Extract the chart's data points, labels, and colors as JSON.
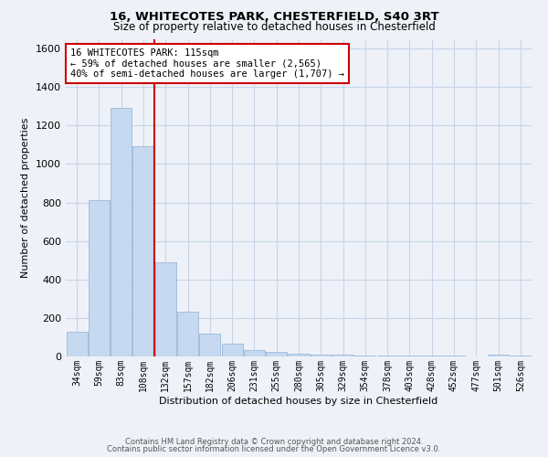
{
  "title1": "16, WHITECOTES PARK, CHESTERFIELD, S40 3RT",
  "title2": "Size of property relative to detached houses in Chesterfield",
  "xlabel": "Distribution of detached houses by size in Chesterfield",
  "ylabel": "Number of detached properties",
  "categories": [
    "34sqm",
    "59sqm",
    "83sqm",
    "108sqm",
    "132sqm",
    "157sqm",
    "182sqm",
    "206sqm",
    "231sqm",
    "255sqm",
    "280sqm",
    "305sqm",
    "329sqm",
    "354sqm",
    "378sqm",
    "403sqm",
    "428sqm",
    "452sqm",
    "477sqm",
    "501sqm",
    "526sqm"
  ],
  "values": [
    130,
    810,
    1290,
    1090,
    490,
    235,
    120,
    65,
    35,
    22,
    14,
    10,
    8,
    6,
    5,
    4,
    3,
    3,
    2,
    8,
    5
  ],
  "bar_color": "#c6d9f1",
  "bar_edgecolor": "#9ab8d8",
  "vline_x_idx": 3.5,
  "vline_color": "#cc0000",
  "annotation_text": "16 WHITECOTES PARK: 115sqm\n← 59% of detached houses are smaller (2,565)\n40% of semi-detached houses are larger (1,707) →",
  "annotation_box_color": "#ffffff",
  "annotation_box_edgecolor": "#cc0000",
  "footnote1": "Contains HM Land Registry data © Crown copyright and database right 2024.",
  "footnote2": "Contains public sector information licensed under the Open Government Licence v3.0.",
  "ylim": [
    0,
    1650
  ],
  "yticks": [
    0,
    200,
    400,
    600,
    800,
    1000,
    1200,
    1400,
    1600
  ],
  "grid_color": "#c8d4e8",
  "background_color": "#eef2f8",
  "title1_fontsize": 9.5,
  "title2_fontsize": 8.5
}
